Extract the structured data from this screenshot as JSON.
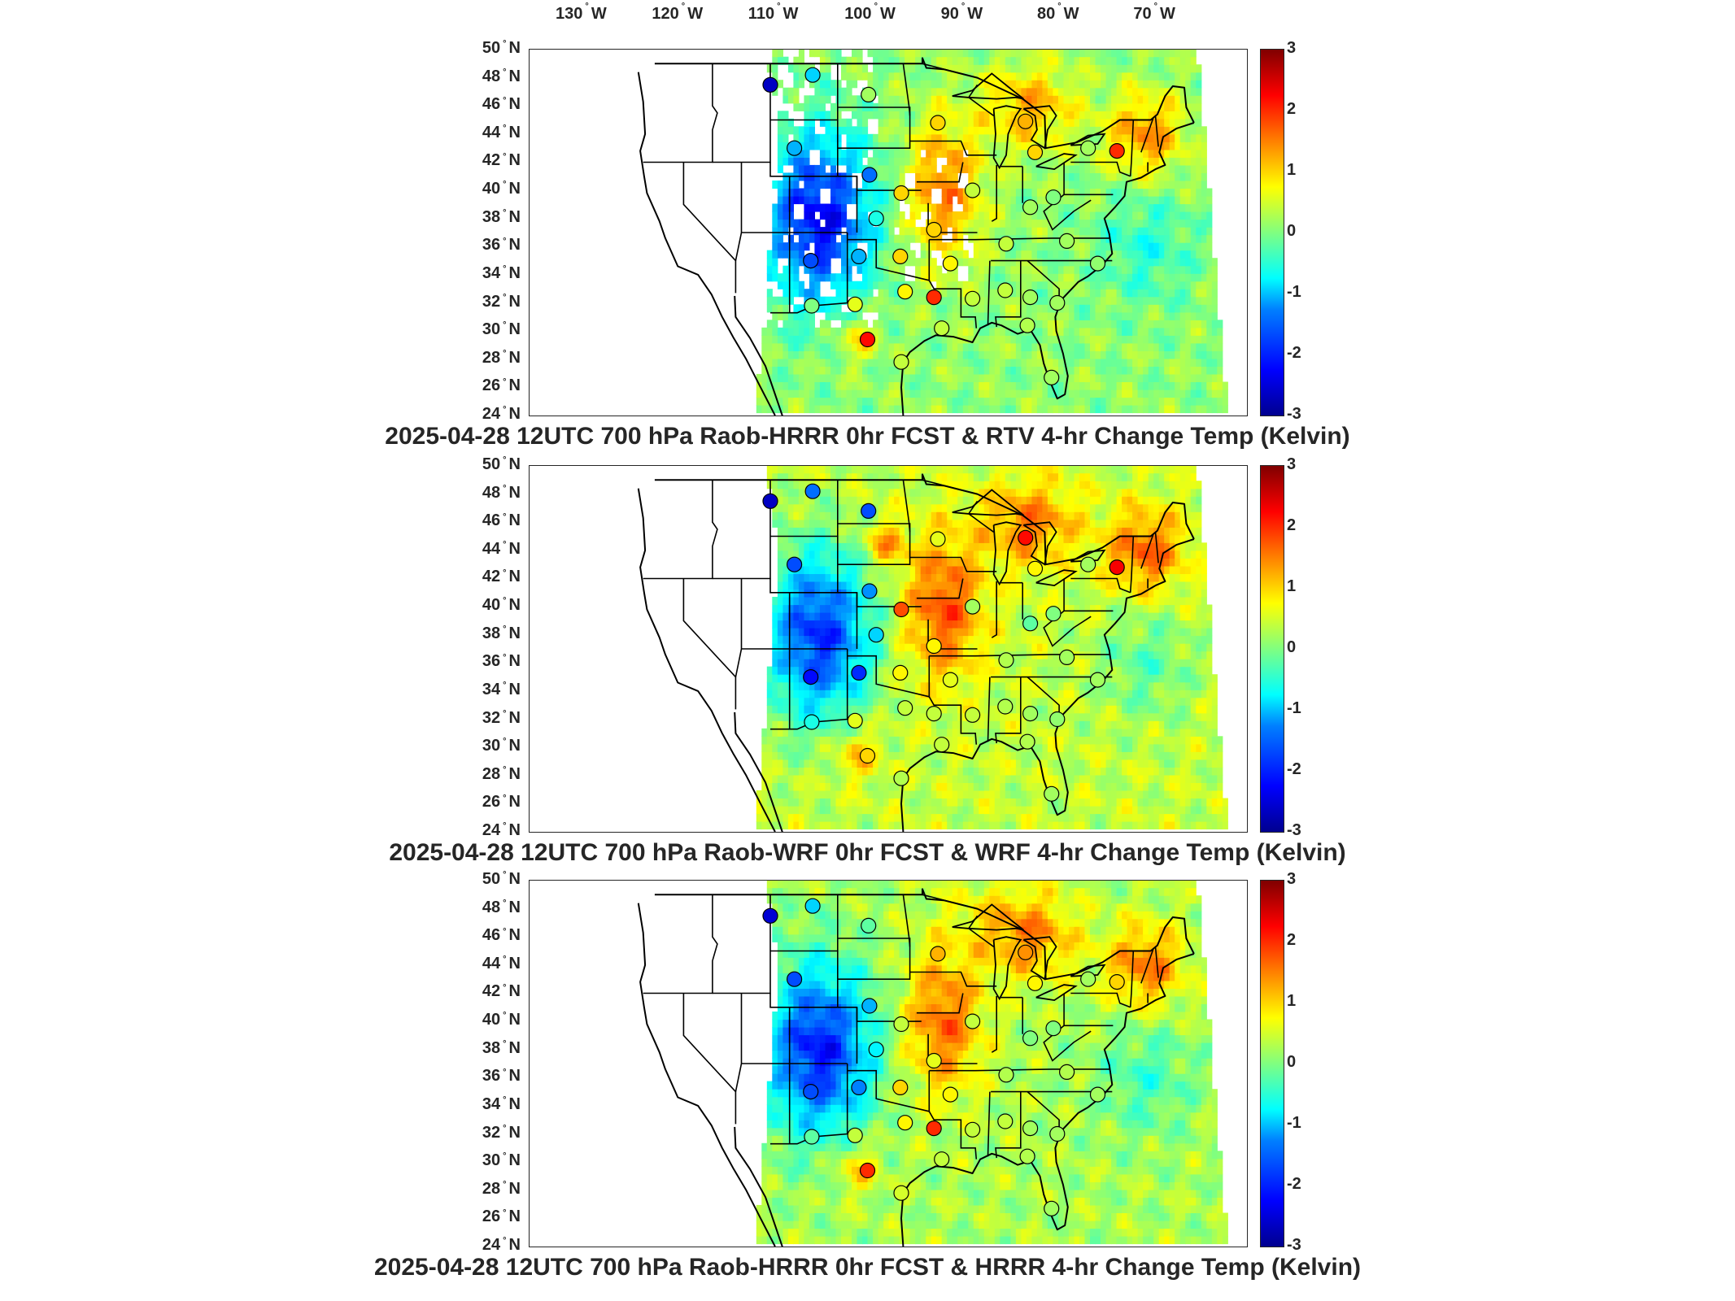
{
  "axes": {
    "lon_ticks": [
      {
        "deg": "130",
        "hem": "W"
      },
      {
        "deg": "120",
        "hem": "W"
      },
      {
        "deg": "110",
        "hem": "W"
      },
      {
        "deg": "100",
        "hem": "W"
      },
      {
        "deg": "90",
        "hem": "W"
      },
      {
        "deg": "80",
        "hem": "W"
      },
      {
        "deg": "70",
        "hem": "W"
      }
    ],
    "lat_ticks": [
      {
        "deg": "50",
        "hem": "N"
      },
      {
        "deg": "48",
        "hem": "N"
      },
      {
        "deg": "46",
        "hem": "N"
      },
      {
        "deg": "44",
        "hem": "N"
      },
      {
        "deg": "42",
        "hem": "N"
      },
      {
        "deg": "40",
        "hem": "N"
      },
      {
        "deg": "38",
        "hem": "N"
      },
      {
        "deg": "36",
        "hem": "N"
      },
      {
        "deg": "34",
        "hem": "N"
      },
      {
        "deg": "32",
        "hem": "N"
      },
      {
        "deg": "30",
        "hem": "N"
      },
      {
        "deg": "28",
        "hem": "N"
      },
      {
        "deg": "26",
        "hem": "N"
      },
      {
        "deg": "24",
        "hem": "N"
      }
    ],
    "degree_symbol": "°"
  },
  "colorbar": {
    "ticks": [
      "3",
      "2",
      "1",
      "0",
      "-1",
      "-2",
      "-3"
    ],
    "range": [
      -3,
      3
    ],
    "colormap": "jet"
  },
  "panels": [
    {
      "title": "2025-04-28 12UTC 700 hPa Raob-HRRR 0hr FCST & RTV 4-hr Change Temp (Kelvin)",
      "field": "rtv",
      "has_data_gaps": true
    },
    {
      "title": "2025-04-28 12UTC 700 hPa Raob-WRF 0hr FCST & WRF 4-hr Change Temp (Kelvin)",
      "field": "wrf",
      "has_data_gaps": false
    },
    {
      "title": "2025-04-28 12UTC 700 hPa Raob-HRRR 0hr FCST & HRRR 4-hr Change Temp (Kelvin)",
      "field": "hrrr",
      "has_data_gaps": false
    }
  ],
  "raob_sites": [
    {
      "lon": -111.0,
      "lat": 47.5,
      "v": [
        -2.6,
        -2.6,
        -2.5
      ]
    },
    {
      "lon": -106.6,
      "lat": 48.2,
      "v": [
        -1.0,
        -1.6,
        -1.0
      ]
    },
    {
      "lon": -100.8,
      "lat": 46.8,
      "v": [
        0.2,
        -1.8,
        -0.2
      ]
    },
    {
      "lon": -108.5,
      "lat": 43.0,
      "v": [
        -1.2,
        -1.8,
        -1.8
      ]
    },
    {
      "lon": -100.7,
      "lat": 41.1,
      "v": [
        -1.6,
        -1.4,
        -1.2
      ]
    },
    {
      "lon": -97.4,
      "lat": 39.8,
      "v": [
        1.0,
        1.8,
        0.4
      ]
    },
    {
      "lon": -100.0,
      "lat": 38.0,
      "v": [
        -0.6,
        -1.0,
        -0.8
      ]
    },
    {
      "lon": -93.6,
      "lat": 44.8,
      "v": [
        1.0,
        0.6,
        1.2
      ]
    },
    {
      "lon": -90.0,
      "lat": 40.0,
      "v": [
        0.4,
        0.2,
        0.4
      ]
    },
    {
      "lon": -94.0,
      "lat": 37.2,
      "v": [
        1.0,
        0.8,
        0.6
      ]
    },
    {
      "lon": -84.5,
      "lat": 44.9,
      "v": [
        1.2,
        2.2,
        1.4
      ]
    },
    {
      "lon": -83.5,
      "lat": 42.7,
      "v": [
        1.0,
        0.8,
        0.8
      ]
    },
    {
      "lon": -75.0,
      "lat": 42.8,
      "v": [
        2.0,
        2.3,
        1.0
      ]
    },
    {
      "lon": -78.0,
      "lat": 43.0,
      "v": [
        0.2,
        0.2,
        0.2
      ]
    },
    {
      "lon": -81.6,
      "lat": 39.5,
      "v": [
        0.0,
        0.0,
        0.0
      ]
    },
    {
      "lon": -84.0,
      "lat": 38.8,
      "v": [
        0.2,
        -0.2,
        0.0
      ]
    },
    {
      "lon": -86.5,
      "lat": 36.2,
      "v": [
        0.4,
        0.3,
        0.3
      ]
    },
    {
      "lon": -80.2,
      "lat": 36.4,
      "v": [
        0.2,
        0.2,
        0.3
      ]
    },
    {
      "lon": -77.0,
      "lat": 34.8,
      "v": [
        0.1,
        0.2,
        0.2
      ]
    },
    {
      "lon": -97.5,
      "lat": 35.3,
      "v": [
        1.0,
        0.8,
        1.0
      ]
    },
    {
      "lon": -101.8,
      "lat": 35.3,
      "v": [
        -1.2,
        -2.0,
        -1.5
      ]
    },
    {
      "lon": -92.3,
      "lat": 34.8,
      "v": [
        0.8,
        0.6,
        0.8
      ]
    },
    {
      "lon": -97.0,
      "lat": 32.8,
      "v": [
        0.8,
        0.4,
        0.8
      ]
    },
    {
      "lon": -94.0,
      "lat": 32.4,
      "v": [
        2.0,
        0.4,
        2.0
      ]
    },
    {
      "lon": -90.0,
      "lat": 32.3,
      "v": [
        0.4,
        0.4,
        0.4
      ]
    },
    {
      "lon": -86.6,
      "lat": 32.9,
      "v": [
        0.4,
        0.3,
        0.4
      ]
    },
    {
      "lon": -84.0,
      "lat": 32.4,
      "v": [
        0.2,
        0.2,
        0.2
      ]
    },
    {
      "lon": -81.2,
      "lat": 32.0,
      "v": [
        0.2,
        0.1,
        0.2
      ]
    },
    {
      "lon": -106.7,
      "lat": 31.8,
      "v": [
        0.0,
        -0.6,
        -0.2
      ]
    },
    {
      "lon": -102.2,
      "lat": 31.9,
      "v": [
        0.6,
        0.6,
        0.4
      ]
    },
    {
      "lon": -100.9,
      "lat": 29.4,
      "v": [
        2.2,
        1.0,
        2.0
      ]
    },
    {
      "lon": -97.4,
      "lat": 27.8,
      "v": [
        0.4,
        0.3,
        0.5
      ]
    },
    {
      "lon": -93.2,
      "lat": 30.2,
      "v": [
        0.4,
        0.4,
        0.4
      ]
    },
    {
      "lon": -84.3,
      "lat": 30.4,
      "v": [
        0.3,
        0.3,
        0.3
      ]
    },
    {
      "lon": -81.8,
      "lat": 26.7,
      "v": [
        0.2,
        0.2,
        0.2
      ]
    },
    {
      "lon": -106.8,
      "lat": 35.0,
      "v": [
        -1.8,
        -2.2,
        -1.8
      ]
    }
  ]
}
